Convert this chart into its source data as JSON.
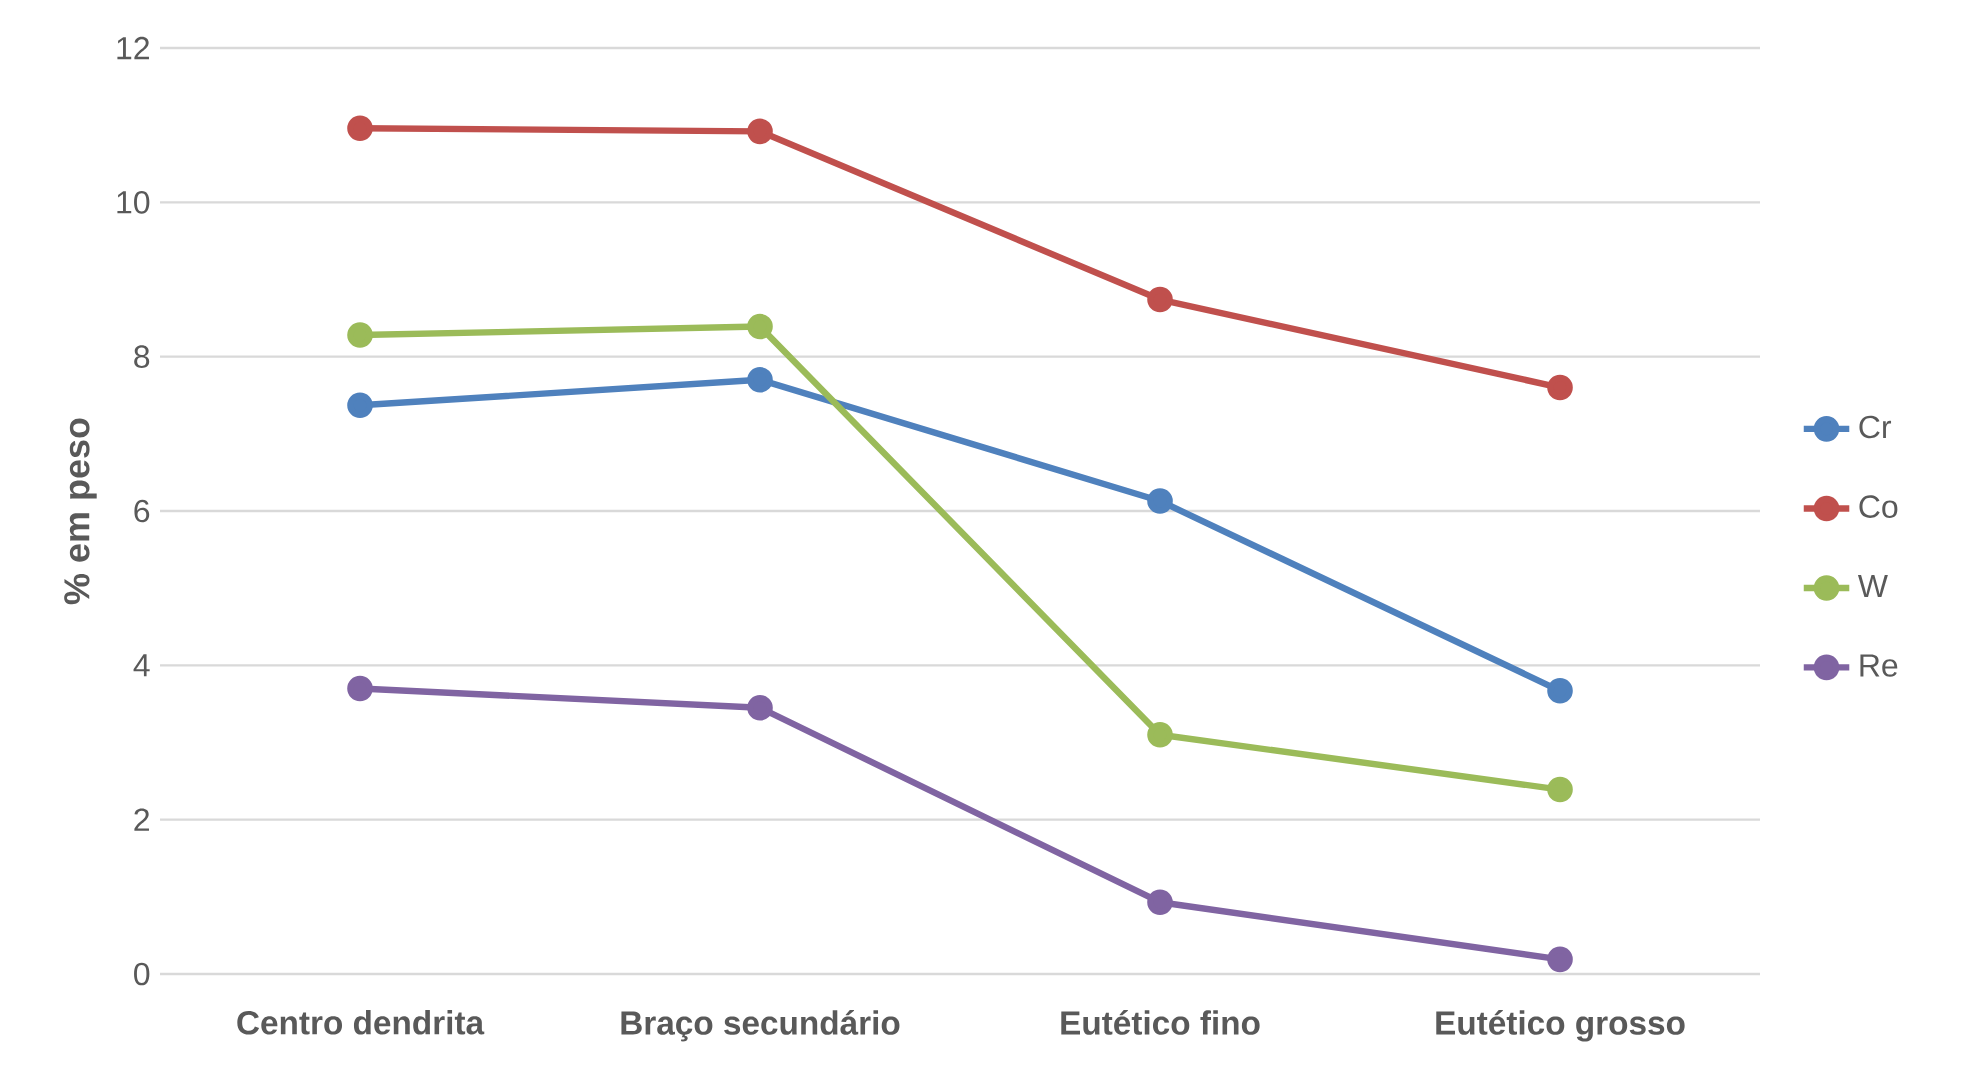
{
  "chart_data": {
    "type": "line",
    "ylabel": "% em peso",
    "categories": [
      "Centro dendrita",
      "Braço secundário",
      "Eutético fino",
      "Eutético grosso"
    ],
    "series": [
      {
        "name": "Cr",
        "color": "#4f81bd",
        "values": [
          7.37,
          7.7,
          6.13,
          3.67
        ]
      },
      {
        "name": "Co",
        "color": "#c0504d",
        "values": [
          10.96,
          10.92,
          8.74,
          7.6
        ]
      },
      {
        "name": "W",
        "color": "#9bbb59",
        "values": [
          8.28,
          8.39,
          3.1,
          2.39
        ]
      },
      {
        "name": "Re",
        "color": "#8064a2",
        "values": [
          3.7,
          3.45,
          0.93,
          0.19
        ]
      }
    ],
    "ylim": [
      0,
      12
    ],
    "yticks": [
      0,
      2,
      4,
      6,
      8,
      10,
      12
    ],
    "grid": "y",
    "legend": "right",
    "marker": "circle",
    "line_style": "solid"
  }
}
